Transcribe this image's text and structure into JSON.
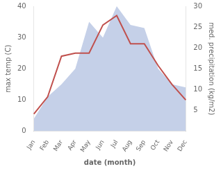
{
  "chart_data": {
    "type": "line",
    "categories": [
      "Jan",
      "Feb",
      "Mar",
      "Apr",
      "May",
      "Jun",
      "Jul",
      "Aug",
      "Sep",
      "Oct",
      "Nov",
      "Dec"
    ],
    "series": [
      {
        "type": "area",
        "color": "#c5d0e8",
        "values": [
          4,
          11,
          15,
          20,
          35,
          30,
          40,
          34,
          33,
          20,
          15,
          14
        ]
      },
      {
        "type": "line",
        "color": "#c0504d",
        "values": [
          5.5,
          11,
          24,
          25,
          25,
          34,
          37,
          28,
          28,
          21,
          15,
          10
        ]
      }
    ],
    "xlabel": "date (month)",
    "ylabel": "max temp (C)",
    "ylim": [
      0,
      40
    ],
    "yticks": [
      0,
      10,
      20,
      30,
      40
    ],
    "y2label": "med. precipitation (kg/m2)",
    "y2lim": [
      0,
      30
    ],
    "y2ticks": [
      5,
      10,
      15,
      20,
      25,
      30
    ],
    "grid": false
  }
}
